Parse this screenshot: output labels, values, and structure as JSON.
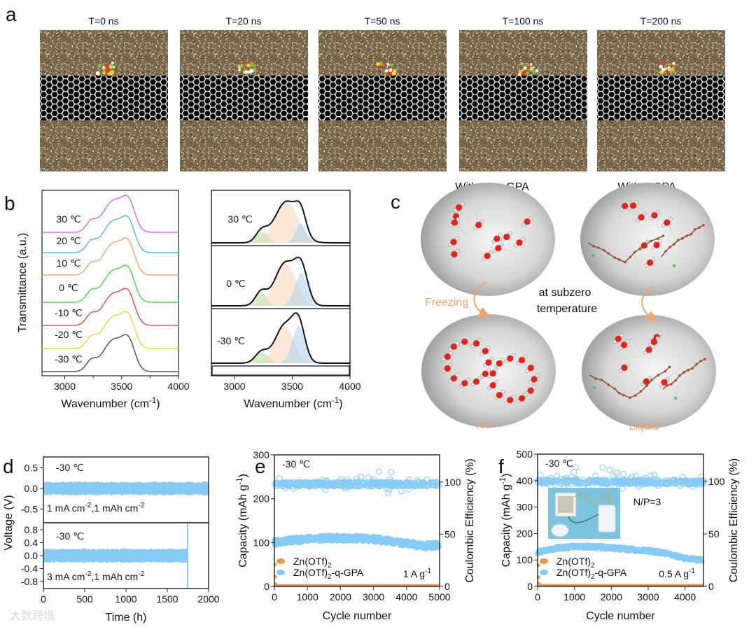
{
  "panel_labels": {
    "a": "a",
    "b": "b",
    "c": "c",
    "d": "d",
    "e": "e",
    "f": "f"
  },
  "panel_a": {
    "snapshots": [
      {
        "title": "T=0 ns"
      },
      {
        "title": "T=20 ns"
      },
      {
        "title": "T=50 ns"
      },
      {
        "title": "T=100 ns"
      },
      {
        "title": "T=200 ns"
      }
    ]
  },
  "panel_c": {
    "without_title": "Without q-GPA",
    "with_title": "With q-GPA",
    "freezing": "Freezing",
    "condition_line1": "at subzero",
    "condition_line2": "temperature",
    "ice": "Ice",
    "liquid": "Liquid"
  },
  "watermark": "大数跨境",
  "colors": {
    "blue": "#86cbf5",
    "orange": "#e8955a",
    "black": "#111111"
  },
  "chart_data": [
    {
      "id": "b-left",
      "type": "line",
      "xlabel": {
        "main": "Wavenumber (cm",
        "sup": "-1",
        "end": ")"
      },
      "ylabel": "Transmittance (a.u.)",
      "xlim": [
        2800,
        4000
      ],
      "xticks": [
        3000,
        3500,
        4000
      ],
      "peak_components": [
        {
          "center": 3230,
          "width": 45,
          "amp": 0.22
        },
        {
          "center": 3430,
          "width": 95,
          "amp": 0.75
        },
        {
          "center": 3565,
          "width": 55,
          "amp": 0.55
        }
      ],
      "series": [
        {
          "name": "30 ℃",
          "color": "#d86de6"
        },
        {
          "name": "20 ℃",
          "color": "#62b6ec"
        },
        {
          "name": "10 ℃",
          "color": "#f0a97a"
        },
        {
          "name": "0 ℃",
          "color": "#4fd84f"
        },
        {
          "name": "-10 ℃",
          "color": "#e8504f"
        },
        {
          "name": "-20 ℃",
          "color": "#e6d84c"
        },
        {
          "name": "-30 ℃",
          "color": "#555555"
        }
      ]
    },
    {
      "id": "b-right",
      "type": "area",
      "xlabel": {
        "main": "Wavenumber (cm",
        "sup": "-1",
        "end": ")"
      },
      "xlim": [
        2800,
        4000
      ],
      "xticks": [
        3000,
        3500,
        4000
      ],
      "component_colors": [
        "#a9e29a",
        "#f6d3b6",
        "#a9d2ef"
      ],
      "series": [
        {
          "name": "30 ℃",
          "components": [
            {
              "center": 3235,
              "width": 50,
              "amp": 0.25
            },
            {
              "center": 3450,
              "width": 100,
              "amp": 0.95
            },
            {
              "center": 3575,
              "width": 45,
              "amp": 0.45
            }
          ]
        },
        {
          "name": "0 ℃",
          "components": [
            {
              "center": 3230,
              "width": 50,
              "amp": 0.26
            },
            {
              "center": 3440,
              "width": 90,
              "amp": 0.85
            },
            {
              "center": 3580,
              "width": 55,
              "amp": 0.65
            }
          ]
        },
        {
          "name": "-30 ℃",
          "components": [
            {
              "center": 3235,
              "width": 55,
              "amp": 0.24
            },
            {
              "center": 3430,
              "width": 80,
              "amp": 0.8
            },
            {
              "center": 3555,
              "width": 55,
              "amp": 0.8
            }
          ]
        }
      ]
    },
    {
      "id": "d",
      "type": "line",
      "xlabel": "Time (h)",
      "ylabel": "Voltage (V)",
      "xlim": [
        0,
        2000
      ],
      "xticks": [
        0,
        500,
        1000,
        1500,
        2000
      ],
      "panels": [
        {
          "temp": "-30 ℃",
          "condition": {
            "a": "1 mA cm",
            "a_sup": "-2",
            "b": ",1 mAh cm",
            "b_sup": "-2"
          },
          "ylim": [
            -0.8,
            0.75
          ],
          "yticks": [
            "0.5",
            "0.0",
            "-0.5"
          ],
          "yvals": [
            0.5,
            0,
            -0.5
          ],
          "amplitude_V": 0.15,
          "duration_h": 2000
        },
        {
          "temp": "-30 ℃",
          "condition": {
            "a": "3 mA cm",
            "a_sup": "-2",
            "b": ",1 mAh cm",
            "b_sup": "-2"
          },
          "ylim": [
            -1.0,
            1.0
          ],
          "yticks": [
            "0.8",
            "0.4",
            "0.0",
            "-0.4",
            "-0.8"
          ],
          "yvals": [
            0.8,
            0.4,
            0,
            -0.4,
            -0.8
          ],
          "amplitude_V": 0.2,
          "short_circuit_h": 1750
        }
      ]
    },
    {
      "id": "e",
      "type": "scatter",
      "temp": "-30 ℃",
      "rate": {
        "main": "1 A g",
        "sup": "-1"
      },
      "xlabel": "Cycle number",
      "ylabel": {
        "main": "Capacity (mAh g",
        "sup": "-1",
        "end": ")"
      },
      "y2label": "Coulombic Efficiency (%)",
      "xlim": [
        0,
        5000
      ],
      "ylim": [
        0,
        300
      ],
      "y2lim": [
        0,
        126
      ],
      "xticks": [
        0,
        1000,
        2000,
        3000,
        4000,
        5000
      ],
      "yticks": [
        0,
        100,
        200,
        300
      ],
      "y2ticks": [
        0,
        50,
        100
      ],
      "legend": [
        {
          "main": "Zn(OTf)",
          "sub": "2",
          "end": "",
          "color": "#e8955a"
        },
        {
          "main": "Zn(OTf)",
          "sub": "2",
          "end": "-q-GPA",
          "color": "#86cbf5"
        }
      ],
      "series": [
        {
          "name": "Zn(OTf)2 capacity",
          "x": [
            0,
            10,
            20,
            40,
            100,
            5000
          ],
          "y": [
            50,
            22,
            5,
            2,
            2,
            2
          ]
        },
        {
          "name": "Zn(OTf)2-q-GPA capacity",
          "x": [
            0,
            500,
            1000,
            1500,
            2000,
            2500,
            3000,
            3500,
            4000,
            4500,
            5000
          ],
          "y": [
            100,
            105,
            108,
            110,
            110,
            110,
            108,
            103,
            98,
            92,
            95
          ]
        },
        {
          "name": "Zn(OTf)2-q-GPA CE",
          "x": [
            0,
            5000
          ],
          "y": [
            98,
            98
          ]
        }
      ]
    },
    {
      "id": "f",
      "type": "scatter",
      "temp": "-30 ℃",
      "np_ratio": "N/P=3",
      "rate": {
        "main": "0.5 A g",
        "sup": "-1"
      },
      "xlabel": "Cycle number",
      "ylabel": {
        "main": "Capacity (mAh g",
        "sup": "-1",
        "end": ")"
      },
      "y2label": "Coulombic Efficiency (%)",
      "xlim": [
        0,
        4500
      ],
      "ylim": [
        0,
        500
      ],
      "y2lim": [
        0,
        126
      ],
      "xticks": [
        0,
        1000,
        2000,
        3000,
        4000
      ],
      "yticks": [
        0,
        100,
        200,
        300,
        400,
        500
      ],
      "y2ticks": [
        0,
        50,
        100
      ],
      "legend": [
        {
          "main": "Zn(OTf)",
          "sub": "2",
          "end": "",
          "color": "#e8955a"
        },
        {
          "main": "Zn(OTf)",
          "sub": "2",
          "end": "-q-GPA",
          "color": "#86cbf5"
        }
      ],
      "series": [
        {
          "name": "Zn(OTf)2 capacity",
          "x": [
            0,
            10,
            20,
            40,
            100,
            4500
          ],
          "y": [
            80,
            35,
            10,
            4,
            4,
            4
          ]
        },
        {
          "name": "Zn(OTf)2-q-GPA capacity",
          "x": [
            0,
            500,
            1000,
            1500,
            2000,
            2500,
            3000,
            3500,
            4000,
            4500
          ],
          "y": [
            130,
            145,
            150,
            150,
            145,
            140,
            135,
            125,
            105,
            100
          ]
        },
        {
          "name": "Zn(OTf)2-q-GPA CE",
          "x": [
            0,
            4500
          ],
          "y": [
            100,
            99
          ]
        }
      ]
    }
  ]
}
